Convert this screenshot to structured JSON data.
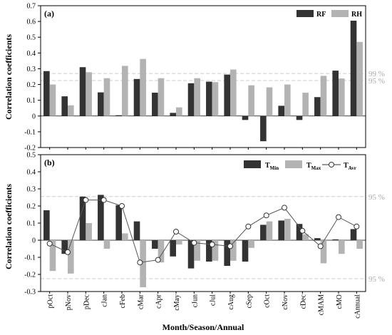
{
  "chart_data": [
    {
      "type": "bar",
      "panel_label": "(a)",
      "ylabel": "Correlation coefficients",
      "ylim": [
        -0.2,
        0.7
      ],
      "yticks": [
        -0.2,
        -0.1,
        0,
        0.1,
        0.2,
        0.3,
        0.4,
        0.5,
        0.6,
        0.7
      ],
      "legend_position": "top-right",
      "categories": [
        "pOct",
        "pNov",
        "pDec",
        "cJan",
        "cFeb",
        "cMar",
        "cApr",
        "cMay",
        "cJun",
        "cJul",
        "cAug",
        "cSep",
        "cOct",
        "cNov",
        "cDec",
        "cMAM",
        "cMO",
        "cAnnual"
      ],
      "series": [
        {
          "name": "RF",
          "color": "#333333",
          "values": [
            0.285,
            0.125,
            0.31,
            0.15,
            0.005,
            0.235,
            0.148,
            0.02,
            0.208,
            0.218,
            0.263,
            -0.025,
            -0.16,
            0.065,
            -0.025,
            0.12,
            0.288,
            0.605
          ]
        },
        {
          "name": "RH",
          "color": "#b3b3b3",
          "values": [
            0.2,
            0.068,
            0.278,
            0.24,
            0.318,
            0.362,
            0.24,
            0.055,
            0.24,
            0.215,
            0.295,
            0.195,
            0.182,
            0.2,
            0.148,
            0.255,
            0.238,
            0.47
          ]
        }
      ],
      "reference_lines": [
        {
          "label": "99 %",
          "value": 0.27
        },
        {
          "label": "95 %",
          "value": 0.225
        }
      ]
    },
    {
      "type": "bar",
      "panel_label": "(b)",
      "ylabel": "Correlation coefficients",
      "xlabel": "Month/Season/Annual",
      "ylim": [
        -0.3,
        0.5
      ],
      "yticks": [
        -0.3,
        -0.2,
        -0.1,
        0,
        0.1,
        0.2,
        0.3,
        0.4,
        0.5
      ],
      "legend_position": "top-right",
      "categories": [
        "pOct",
        "pNov",
        "pDec",
        "cJan",
        "cFeb",
        "cMar",
        "cApr",
        "cMay",
        "cJun",
        "cJul",
        "cAug",
        "cSep",
        "cOct",
        "cNov",
        "cDec",
        "cMAM",
        "cMO",
        "cAnnual"
      ],
      "series": [
        {
          "name": "T",
          "subscript": "Min",
          "color": "#333333",
          "kind": "bar",
          "values": [
            0.175,
            -0.08,
            0.255,
            0.265,
            0.205,
            0.11,
            -0.05,
            -0.095,
            -0.165,
            -0.125,
            -0.15,
            -0.125,
            0.09,
            0.115,
            0.095,
            0.012,
            0.005,
            0.065
          ]
        },
        {
          "name": "T",
          "subscript": "Max",
          "color": "#b3b3b3",
          "kind": "bar",
          "values": [
            -0.18,
            -0.195,
            0.1,
            -0.05,
            0.04,
            -0.275,
            -0.13,
            -0.025,
            -0.12,
            -0.12,
            -0.12,
            -0.045,
            0.11,
            0.125,
            0.035,
            -0.135,
            -0.08,
            -0.05
          ]
        },
        {
          "name": "T",
          "subscript": "Avr",
          "color": "#333333",
          "kind": "line",
          "values": [
            -0.02,
            -0.07,
            0.235,
            0.235,
            0.2,
            -0.13,
            -0.115,
            0.05,
            -0.015,
            -0.025,
            -0.035,
            0.08,
            0.145,
            0.19,
            0.055,
            -0.035,
            0.135,
            0.08
          ]
        }
      ],
      "reference_lines": [
        {
          "label": "95 %",
          "value": 0.255
        },
        {
          "label": "95 %",
          "value": -0.225
        }
      ]
    }
  ]
}
